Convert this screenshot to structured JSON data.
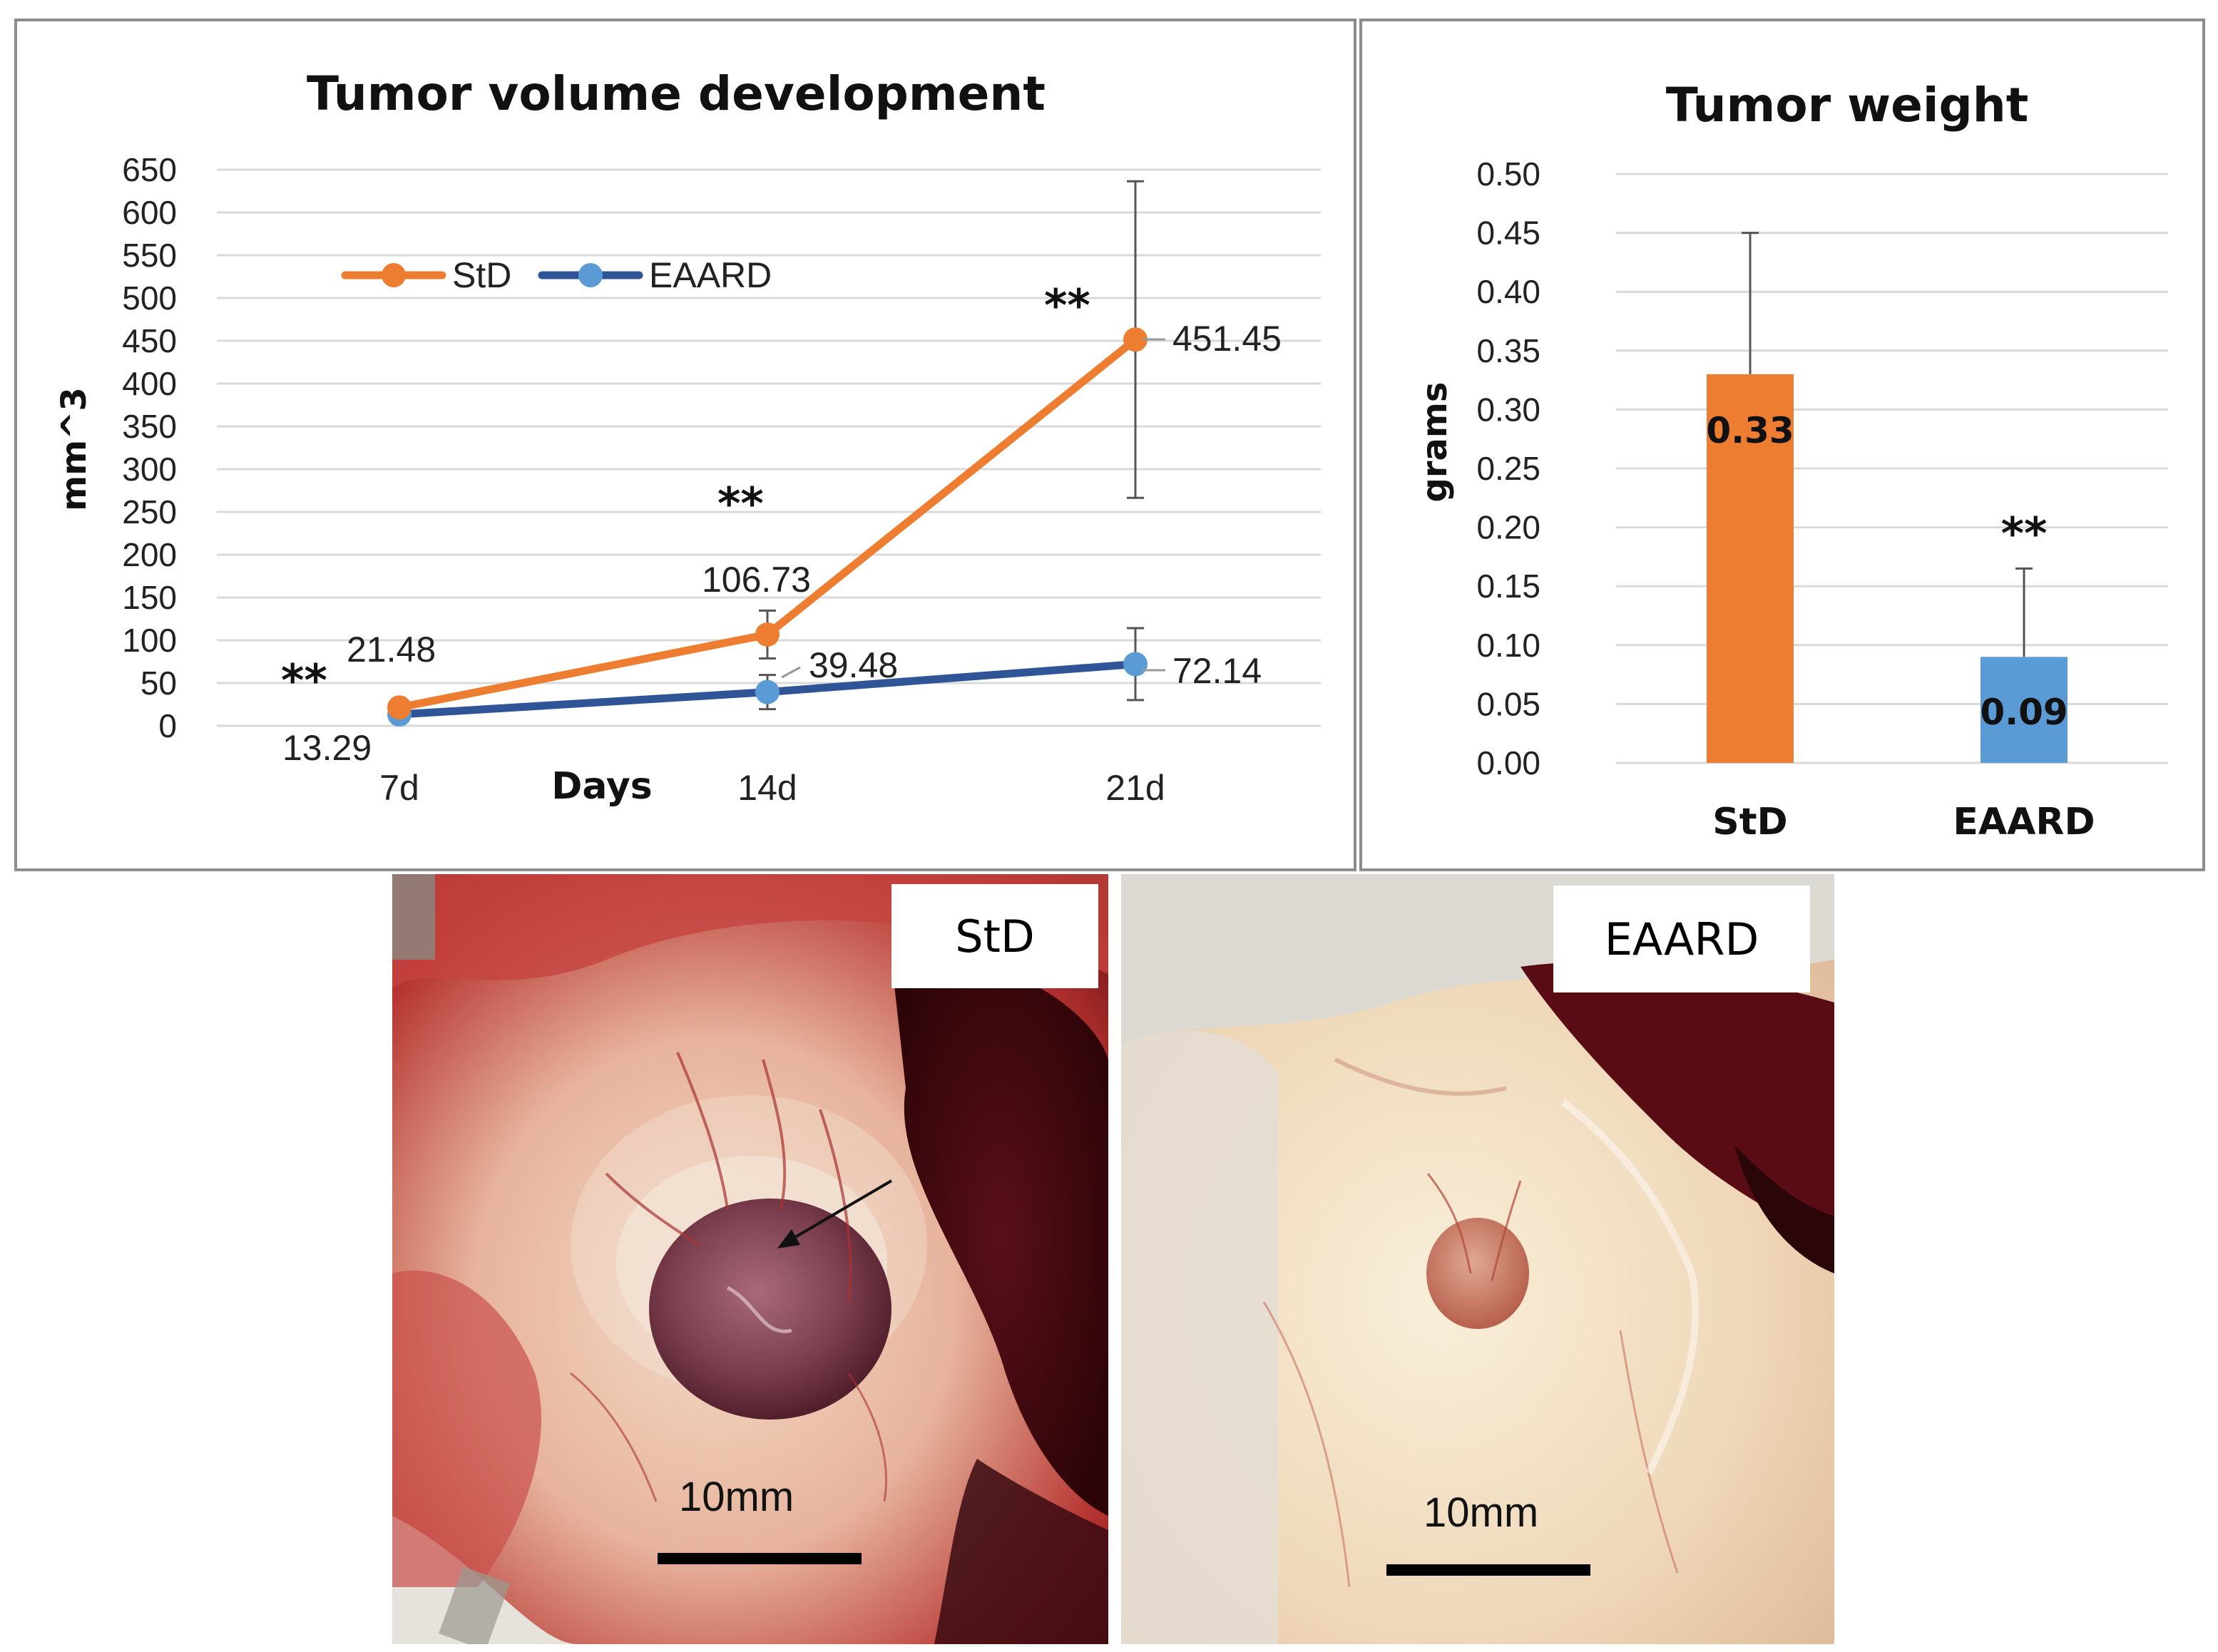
{
  "chart_data": [
    {
      "type": "line",
      "title": "Tumor volume development",
      "xlabel": "Days",
      "ylabel": "mm^3",
      "categories": [
        "7d",
        "14d",
        "21d"
      ],
      "ylim": [
        0,
        650
      ],
      "yticks": [
        0,
        50,
        100,
        150,
        200,
        250,
        300,
        350,
        400,
        450,
        500,
        550,
        600,
        650
      ],
      "grid": true,
      "legend": "top-left",
      "series": [
        {
          "name": "StD",
          "color": "#ED7D31",
          "values": [
            21.48,
            106.73,
            451.45
          ],
          "error": [
            [
              0,
              0
            ],
            [
              -28,
              28
            ],
            [
              -185,
              185
            ]
          ],
          "labels": [
            "21.48",
            "106.73",
            "451.45"
          ]
        },
        {
          "name": "EAARD",
          "color": "#2F5597",
          "marker_color": "#5B9BD5",
          "values": [
            13.29,
            39.48,
            72.14
          ],
          "error": [
            [
              0,
              0
            ],
            [
              -20,
              20
            ],
            [
              -42,
              42
            ]
          ],
          "labels": [
            "13.29",
            "39.48",
            "72.14"
          ]
        }
      ],
      "annotations": [
        "**",
        "**",
        "**"
      ]
    },
    {
      "type": "bar",
      "title": "Tumor weight",
      "xlabel": "",
      "ylabel": "grams",
      "categories": [
        "StD",
        "EAARD"
      ],
      "values": [
        0.33,
        0.09
      ],
      "value_labels": [
        "0.33",
        "0.09"
      ],
      "colors": [
        "#ED7D31",
        "#5B9BD5"
      ],
      "error_upper": [
        0.45,
        0.165
      ],
      "ylim": [
        0,
        0.5
      ],
      "yticks": [
        "0.00",
        "0.05",
        "0.10",
        "0.15",
        "0.20",
        "0.25",
        "0.30",
        "0.35",
        "0.40",
        "0.45",
        "0.50"
      ],
      "grid": true,
      "annotations": [
        "**"
      ]
    }
  ],
  "photos": {
    "left_label": "StD",
    "right_label": "EAARD",
    "left_scale": "10mm",
    "right_scale": "10mm"
  }
}
